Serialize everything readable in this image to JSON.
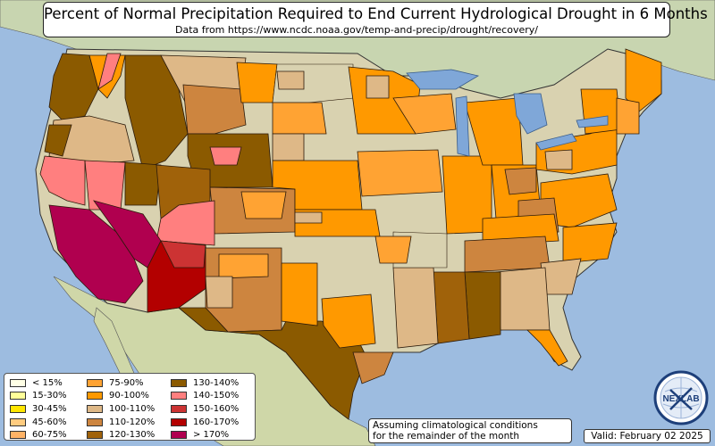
{
  "title": "Percent of Normal Precipitation Required to End Current Hydrological Drought in 6 Months",
  "subtitle": "Data from https://www.ncdc.noaa.gov/temp-and-precip/drought/recovery/",
  "note": {
    "line1": "Assuming climatological conditions",
    "line2": "for the remainder of the month"
  },
  "valid": "Valid: February 02 2025",
  "logo_text": "NEXLAB",
  "colors": {
    "ocean": "#9dbce0",
    "land": "#d9d2b0",
    "canada_land": "#c8d5b0",
    "border": "#2b1a0a",
    "lake": "#7fa7d8"
  },
  "legend": [
    {
      "label": "< 15%",
      "color": "#ffffe6"
    },
    {
      "label": "15-30%",
      "color": "#ffff99"
    },
    {
      "label": "30-45%",
      "color": "#ffe600"
    },
    {
      "label": "45-60%",
      "color": "#ffcc80"
    },
    {
      "label": "60-75%",
      "color": "#ffb366"
    },
    {
      "label": "75-90%",
      "color": "#ffa333"
    },
    {
      "label": "90-100%",
      "color": "#ff9900"
    },
    {
      "label": "100-110%",
      "color": "#deb887"
    },
    {
      "label": "110-120%",
      "color": "#cd853f"
    },
    {
      "label": "120-130%",
      "color": "#a0620a"
    },
    {
      "label": "130-140%",
      "color": "#8b5a00"
    },
    {
      "label": "140-150%",
      "color": "#ff7f7f"
    },
    {
      "label": "150-160%",
      "color": "#cc3333"
    },
    {
      "label": "160-170%",
      "color": "#b30000"
    },
    {
      "label": "> 170%",
      "color": "#b0004f"
    }
  ]
}
